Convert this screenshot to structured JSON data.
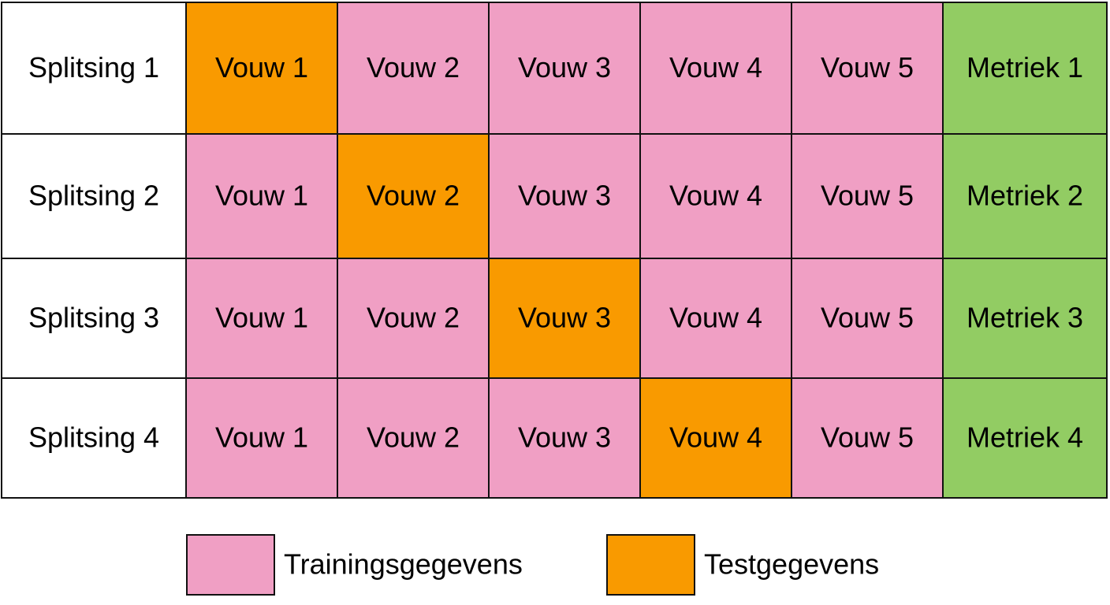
{
  "table": {
    "rows": [
      {
        "label": "Splitsing 1",
        "cells": [
          "Vouw 1",
          "Vouw 2",
          "Vouw 3",
          "Vouw 4",
          "Vouw 5"
        ],
        "cell_colors": [
          "#f99a00",
          "#f09fc4",
          "#f09fc4",
          "#f09fc4",
          "#f09fc4"
        ],
        "metric": "Metriek 1"
      },
      {
        "label": "Splitsing 2",
        "cells": [
          "Vouw 1",
          "Vouw 2",
          "Vouw 3",
          "Vouw 4",
          "Vouw 5"
        ],
        "cell_colors": [
          "#f09fc4",
          "#f99a00",
          "#f09fc4",
          "#f09fc4",
          "#f09fc4"
        ],
        "metric": "Metriek 2"
      },
      {
        "label": "Splitsing 3",
        "cells": [
          "Vouw 1",
          "Vouw 2",
          "Vouw 3",
          "Vouw 4",
          "Vouw 5"
        ],
        "cell_colors": [
          "#f09fc4",
          "#f09fc4",
          "#f99a00",
          "#f09fc4",
          "#f09fc4"
        ],
        "metric": "Metriek 3"
      },
      {
        "label": "Splitsing 4",
        "cells": [
          "Vouw 1",
          "Vouw 2",
          "Vouw 3",
          "Vouw 4",
          "Vouw 5"
        ],
        "cell_colors": [
          "#f09fc4",
          "#f09fc4",
          "#f09fc4",
          "#f99a00",
          "#f09fc4"
        ],
        "metric": "Metriek 4"
      }
    ],
    "label_color": "#ffffff",
    "metric_color": "#92cc63"
  },
  "legend": {
    "items": [
      {
        "label": "Trainingsgegevens",
        "color": "#f09fc4"
      },
      {
        "label": "Testgegevens",
        "color": "#f99a00"
      }
    ]
  }
}
